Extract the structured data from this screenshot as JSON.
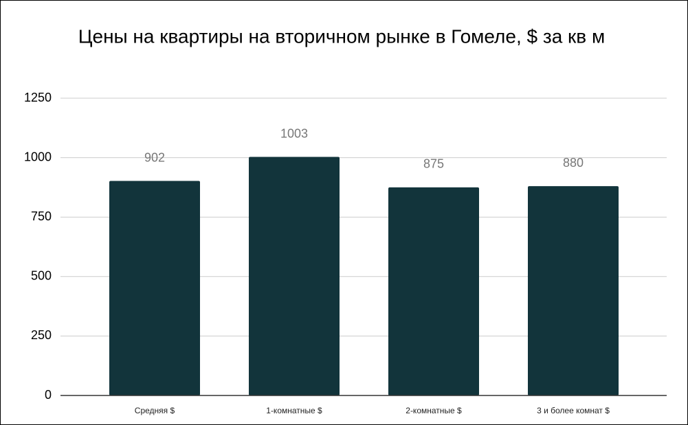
{
  "chart_data": {
    "type": "bar",
    "title": "Цены на квартиры на вторичном рынке в Гомеле, $ за кв м",
    "categories": [
      "Средняя $",
      "1-комнатные $",
      "2-комнатные $",
      "3 и более комнат $"
    ],
    "values": [
      902,
      1003,
      875,
      880
    ],
    "color": "#12343b",
    "ylim": [
      0,
      1250
    ],
    "yticks": [
      0,
      250,
      500,
      750,
      1000,
      1250
    ],
    "grid": true
  }
}
